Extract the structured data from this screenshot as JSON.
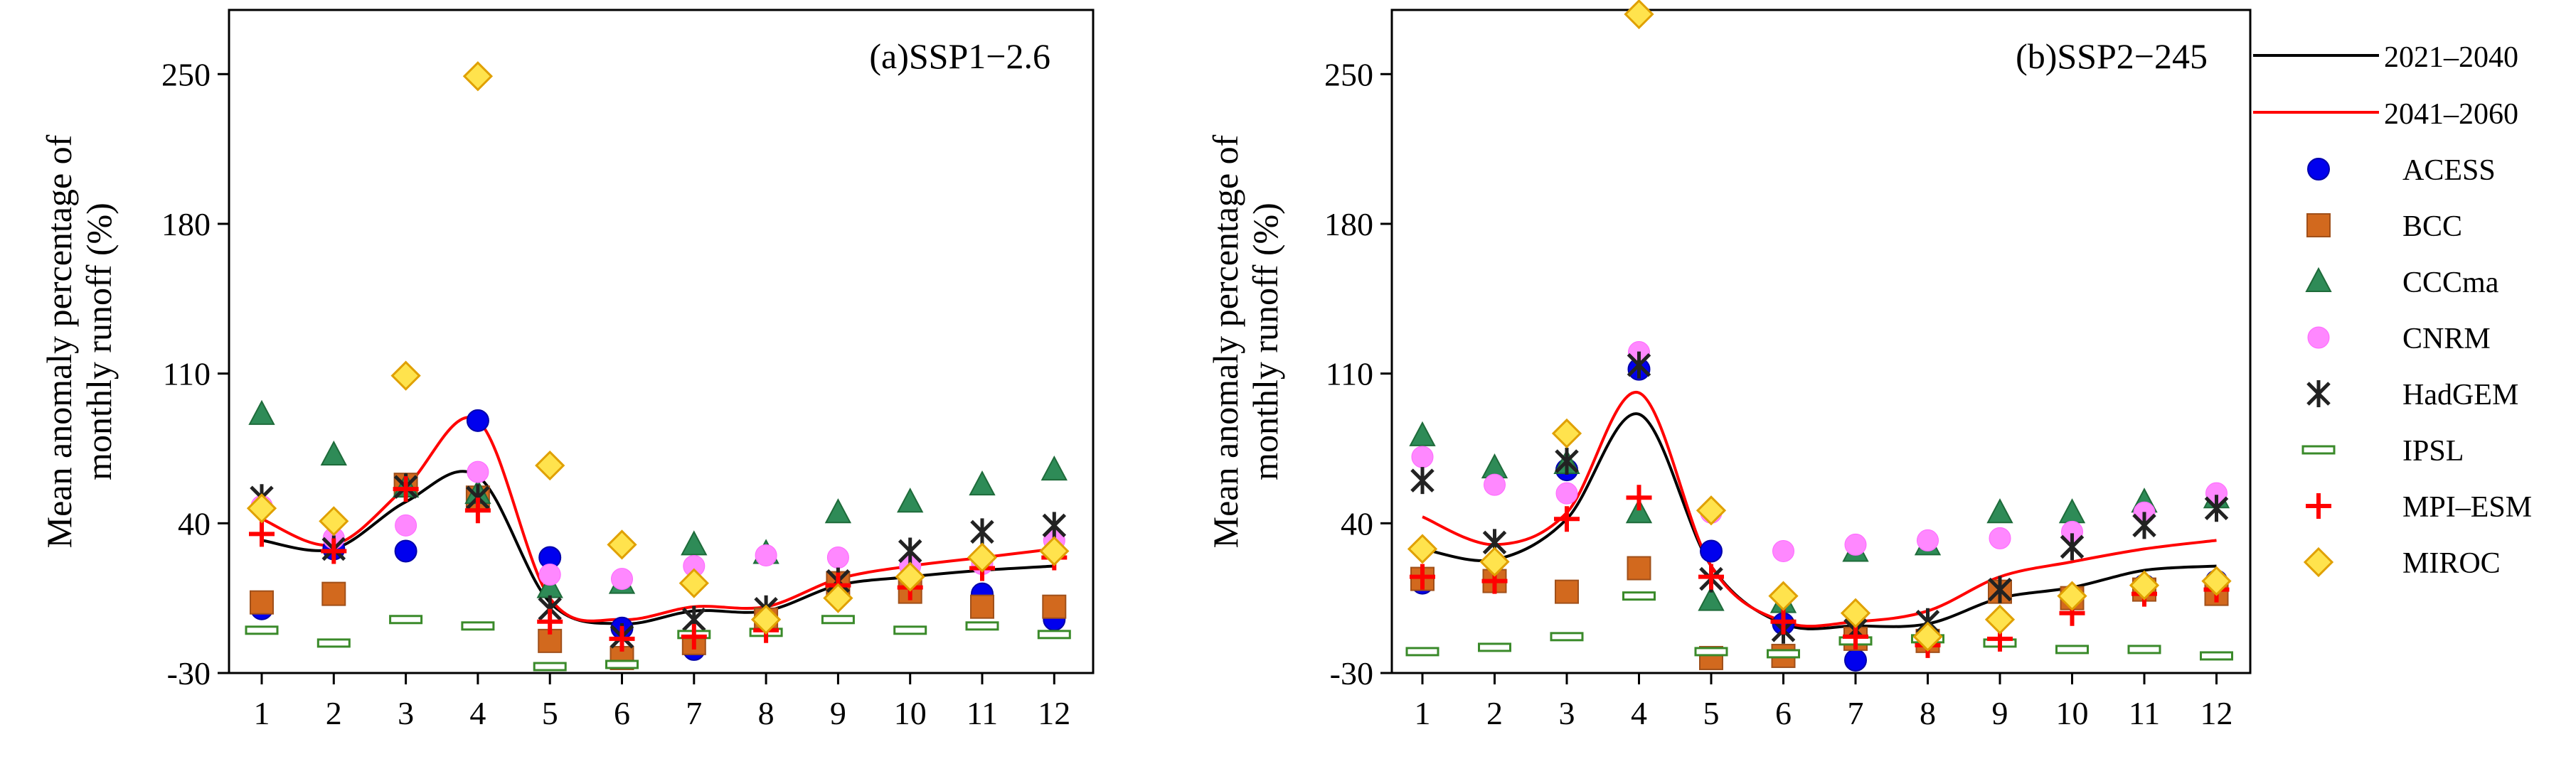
{
  "chart_data": {
    "type": "scatter",
    "categories": [
      "1",
      "2",
      "3",
      "4",
      "5",
      "6",
      "7",
      "8",
      "9",
      "10",
      "11",
      "12"
    ],
    "ylabel_line1": "Mean anomaly percentage of",
    "ylabel_line2": "monthly runoff (%)",
    "yticks": [
      "250",
      "180",
      "110",
      "40",
      "-30"
    ],
    "ytick_values": [
      250,
      180,
      110,
      40,
      -30
    ],
    "ylim": [
      -30,
      280
    ],
    "panels": [
      {
        "title": "(a)SSP1−2.6",
        "lines": [
          {
            "name": "2021–2040",
            "values": [
              32,
              28,
              50,
              62,
              3,
              -7,
              -1,
              -1,
              11,
              15,
              18,
              20
            ]
          },
          {
            "name": "2041–2060",
            "values": [
              42,
              30,
              57,
              88,
              5,
              -5,
              1,
              1,
              14,
              20,
              24,
              28
            ]
          }
        ],
        "series": [
          {
            "name": "ACESS",
            "values": [
              0,
              28,
              27,
              88,
              24,
              -9,
              -19,
              -5,
              12,
              13,
              7,
              -5
            ]
          },
          {
            "name": "BCC",
            "values": [
              3,
              7,
              58,
              52,
              -15,
              -23,
              -16,
              -5,
              12,
              8,
              1,
              1
            ]
          },
          {
            "name": "CCCma",
            "values": [
              91,
              72,
              57,
              54,
              10,
              12,
              30,
              26,
              45,
              50,
              58,
              65
            ]
          },
          {
            "name": "CNRM",
            "values": [
              48,
              33,
              39,
              64,
              16,
              14,
              20,
              25,
              24,
              20,
              21,
              32
            ]
          },
          {
            "name": "HadGEM",
            "values": [
              52,
              28,
              57,
              52,
              0,
              -13,
              -5,
              0,
              13,
              27,
              36,
              39
            ]
          },
          {
            "name": "IPSL",
            "values": [
              -10,
              -16,
              -5,
              -8,
              -27,
              -26,
              -12,
              -11,
              -5,
              -10,
              -8,
              -12
            ]
          },
          {
            "name": "MPI–ESM",
            "values": [
              35,
              27,
              56,
              46,
              -6,
              -14,
              -13,
              -10,
              11,
              10,
              19,
              24
            ]
          },
          {
            "name": "MIROC",
            "values": [
              47,
              41,
              109,
              249,
              67,
              30,
              12,
              -5,
              5,
              15,
              24,
              27
            ]
          }
        ]
      },
      {
        "title": "(b)SSP2−245",
        "lines": [
          {
            "name": "2021–2040",
            "values": [
              28,
              23,
              42,
              91,
              20,
              -7,
              -8,
              -7,
              5,
              10,
              18,
              20
            ]
          },
          {
            "name": "2041–2060",
            "values": [
              43,
              30,
              45,
              101,
              20,
              -6,
              -6,
              -1,
              15,
              22,
              28,
              32
            ]
          }
        ],
        "series": [
          {
            "name": "ACESS",
            "values": [
              12,
              14,
              65,
              112,
              27,
              -7,
              -24,
              -14,
              8,
              6,
              11,
              13
            ]
          },
          {
            "name": "BCC",
            "values": [
              14,
              13,
              8,
              19,
              -23,
              -22,
              -14,
              -15,
              8,
              5,
              9,
              7
            ]
          },
          {
            "name": "CCCma",
            "values": [
              81,
              66,
              68,
              45,
              4,
              3,
              27,
              30,
              45,
              45,
              50,
              52
            ]
          },
          {
            "name": "CNRM",
            "values": [
              71,
              58,
              54,
              120,
              45,
              27,
              30,
              32,
              33,
              36,
              45,
              54
            ]
          },
          {
            "name": "HadGEM",
            "values": [
              60,
              31,
              69,
              114,
              14,
              -10,
              -10,
              -6,
              9,
              29,
              39,
              47
            ]
          },
          {
            "name": "IPSL",
            "values": [
              -20,
              -18,
              -13,
              6,
              -20,
              -21,
              -15,
              -14,
              -16,
              -19,
              -19,
              -22
            ]
          },
          {
            "name": "MPI–ESM",
            "values": [
              15,
              13,
              42,
              52,
              15,
              -6,
              -13,
              -17,
              -14,
              -2,
              7,
              9
            ]
          },
          {
            "name": "MIROC",
            "values": [
              28,
              22,
              82,
              278,
              46,
              6,
              -2,
              -13,
              -5,
              6,
              11,
              13
            ]
          }
        ]
      }
    ],
    "legend": [
      {
        "name": "2021–2040",
        "type": "line"
      },
      {
        "name": "2041–2060",
        "type": "line"
      },
      {
        "name": "ACESS",
        "type": "marker"
      },
      {
        "name": "BCC",
        "type": "marker"
      },
      {
        "name": "CCCma",
        "type": "marker"
      },
      {
        "name": "CNRM",
        "type": "marker"
      },
      {
        "name": "HadGEM",
        "type": "marker"
      },
      {
        "name": "IPSL",
        "type": "marker"
      },
      {
        "name": "MPI–ESM",
        "type": "marker"
      },
      {
        "name": "MIROC",
        "type": "marker"
      }
    ],
    "colors": {
      "2021–2040": "#000000",
      "2041–2060": "#ff0000",
      "ACESS": "#0000ee",
      "BCC": "#d2691e",
      "CCCma": "#2e8b57",
      "CNRM": "#ff88ff",
      "HadGEM": "#222222",
      "IPSL": "#3a8a2a",
      "MPI–ESM": "#ff0000",
      "MIROC": "#ffe34d"
    }
  }
}
